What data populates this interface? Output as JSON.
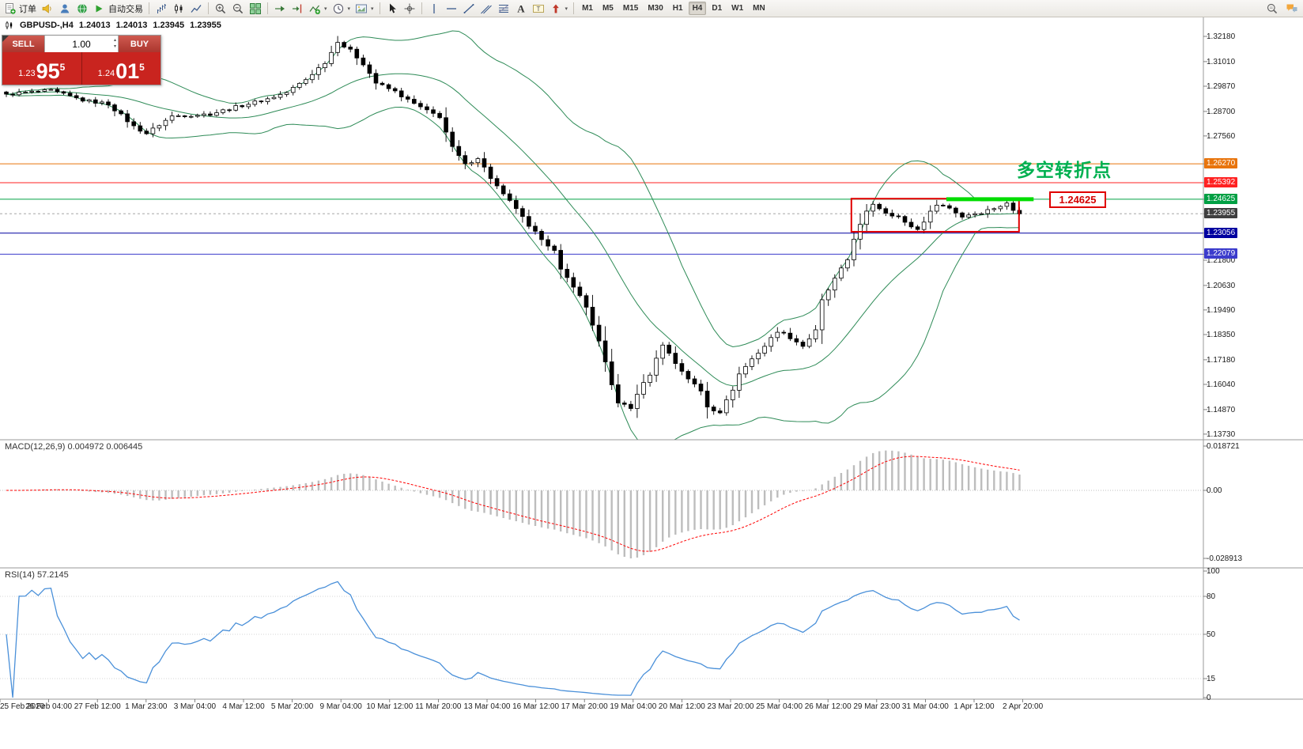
{
  "toolbar": {
    "active_timeframe": "H4",
    "items": [
      {
        "type": "labeled",
        "name": "new-order-button",
        "icon": "order-icon",
        "label": "订单"
      },
      {
        "type": "icon",
        "name": "alerts-horn-button",
        "icon": "horn-icon"
      },
      {
        "type": "icon",
        "name": "profile-button",
        "icon": "profile-icon"
      },
      {
        "type": "icon",
        "name": "community-button",
        "icon": "community-icon"
      },
      {
        "type": "labeled",
        "name": "autotrading-button",
        "icon": "autotrading-icon",
        "label": "自动交易"
      },
      {
        "type": "sep"
      },
      {
        "type": "icon",
        "name": "bar-chart-button",
        "icon": "bar-chart-icon"
      },
      {
        "type": "icon",
        "name": "candlestick-chart-button",
        "icon": "candlestick-chart-icon"
      },
      {
        "type": "icon",
        "name": "line-chart-button",
        "icon": "line-chart-icon"
      },
      {
        "type": "sep"
      },
      {
        "type": "icon",
        "name": "zoom-in-button",
        "icon": "zoom-in-icon"
      },
      {
        "type": "icon",
        "name": "zoom-out-button",
        "icon": "zoom-out-icon"
      },
      {
        "type": "icon",
        "name": "tile-windows-button",
        "icon": "tile-windows-icon"
      },
      {
        "type": "sep"
      },
      {
        "type": "icon",
        "name": "auto-scroll-button",
        "icon": "auto-scroll-icon"
      },
      {
        "type": "icon",
        "name": "chart-shift-button",
        "icon": "chart-shift-icon"
      },
      {
        "type": "icon",
        "name": "indicators-button",
        "icon": "indicators-icon",
        "caret": true
      },
      {
        "type": "icon",
        "name": "periods-button",
        "icon": "clock-icon",
        "caret": true
      },
      {
        "type": "icon",
        "name": "templates-button",
        "icon": "template-icon",
        "caret": true
      },
      {
        "type": "sep"
      },
      {
        "type": "icon",
        "name": "cursor-button",
        "icon": "cursor-icon"
      },
      {
        "type": "icon",
        "name": "crosshair-button",
        "icon": "crosshair-icon"
      },
      {
        "type": "sep"
      },
      {
        "type": "icon",
        "name": "vertical-line-button",
        "icon": "vline-icon"
      },
      {
        "type": "icon",
        "name": "horizontal-line-button",
        "icon": "hline-icon"
      },
      {
        "type": "icon",
        "name": "trendline-button",
        "icon": "trendline-icon"
      },
      {
        "type": "icon",
        "name": "channel-button",
        "icon": "channel-icon"
      },
      {
        "type": "icon",
        "name": "fibonacci-button",
        "icon": "fibo-icon"
      },
      {
        "type": "icon",
        "name": "text-button",
        "icon": "text-icon"
      },
      {
        "type": "icon",
        "name": "text-label-button",
        "icon": "label-icon"
      },
      {
        "type": "icon",
        "name": "arrows-button",
        "icon": "arrows-icon",
        "caret": true
      },
      {
        "type": "sep"
      },
      {
        "type": "tf",
        "label": "M1"
      },
      {
        "type": "tf",
        "label": "M5"
      },
      {
        "type": "tf",
        "label": "M15"
      },
      {
        "type": "tf",
        "label": "M30"
      },
      {
        "type": "tf",
        "label": "H1"
      },
      {
        "type": "tf",
        "label": "H4"
      },
      {
        "type": "tf",
        "label": "D1"
      },
      {
        "type": "tf",
        "label": "W1"
      },
      {
        "type": "tf",
        "label": "MN"
      }
    ],
    "right_icons": [
      "symbol-search-icon",
      "chat-icon"
    ]
  },
  "chart_header": {
    "symbol_period": "GBPUSD-,H4",
    "open": "1.24013",
    "high": "1.24013",
    "low": "1.23945",
    "close": "1.23955"
  },
  "trade_panel": {
    "sell_label": "SELL",
    "buy_label": "BUY",
    "volume": "1.00",
    "sell_price": {
      "prefix": "1.23",
      "big": "95",
      "sup": "5"
    },
    "buy_price": {
      "prefix": "1.24",
      "big": "01",
      "sup": "5"
    }
  },
  "annotations": {
    "turning_point_text": "多空转折点",
    "level_label": "1.24625"
  },
  "price_axis": {
    "plain_ticks": [
      "1.32180",
      "1.31010",
      "1.29870",
      "1.28700",
      "1.27560",
      "1.21800",
      "1.20630",
      "1.19490",
      "1.18350",
      "1.17180",
      "1.16040",
      "1.14870",
      "1.13730"
    ],
    "badges": [
      {
        "price": "1.26270",
        "color": "#e8740c"
      },
      {
        "price": "1.25392",
        "color": "#ff2222"
      },
      {
        "price": "1.24625",
        "color": "#00a043"
      },
      {
        "price": "1.23955",
        "color": "#3f3f3f"
      },
      {
        "price": "1.23056",
        "color": "#0000a0"
      },
      {
        "price": "1.22079",
        "color": "#3c3ccc"
      }
    ]
  },
  "hlines": [
    {
      "price": 1.2627,
      "color": "#e8740c",
      "width": 1
    },
    {
      "price": 1.25392,
      "color": "#ff2222",
      "width": 1
    },
    {
      "price": 1.24625,
      "color": "#00a043",
      "width": 1
    },
    {
      "price": 1.23955,
      "color": "#999999",
      "width": 0.8,
      "dash": "3,3"
    },
    {
      "price": 1.23056,
      "color": "#0000a0",
      "width": 1
    },
    {
      "price": 1.22079,
      "color": "#3c3ccc",
      "width": 1
    }
  ],
  "macd": {
    "label": "MACD(12,26,9) 0.004972 0.006445",
    "axis": [
      "0.018721",
      "0.00",
      "-0.028913"
    ]
  },
  "rsi": {
    "label": "RSI(14) 57.2145",
    "axis": [
      "100",
      "80",
      "50",
      "15",
      "0"
    ],
    "levels": [
      80,
      50,
      15
    ]
  },
  "time_axis": [
    "25 Feb 2020",
    "26 Feb 04:00",
    "27 Feb 12:00",
    "1 Mar 23:00",
    "3 Mar 04:00",
    "4 Mar 12:00",
    "5 Mar 20:00",
    "9 Mar 04:00",
    "10 Mar 12:00",
    "11 Mar 20:00",
    "13 Mar 04:00",
    "16 Mar 12:00",
    "17 Mar 20:00",
    "19 Mar 04:00",
    "20 Mar 12:00",
    "23 Mar 20:00",
    "25 Mar 04:00",
    "26 Mar 12:00",
    "29 Mar 23:00",
    "31 Mar 04:00",
    "1 Apr 12:00",
    "2 Apr 20:00"
  ],
  "chart_data": {
    "type": "candlestick",
    "symbol": "GBPUSD",
    "period": "H4",
    "bar_count": 160,
    "visible_price_range": [
      1.1373,
      1.3218
    ],
    "waypoints": [
      [
        0,
        1.295
      ],
      [
        4,
        1.296
      ],
      [
        7,
        1.2966
      ],
      [
        12,
        1.2922
      ],
      [
        16,
        1.2905
      ],
      [
        20,
        1.28
      ],
      [
        22,
        1.2768
      ],
      [
        26,
        1.2848
      ],
      [
        32,
        1.2858
      ],
      [
        37,
        1.2898
      ],
      [
        41,
        1.2928
      ],
      [
        44,
        1.2958
      ],
      [
        47,
        1.3018
      ],
      [
        50,
        1.3098
      ],
      [
        52,
        1.319
      ],
      [
        54,
        1.3152
      ],
      [
        56,
        1.3092
      ],
      [
        58,
        1.3002
      ],
      [
        61,
        1.2962
      ],
      [
        63,
        1.2922
      ],
      [
        66,
        1.2872
      ],
      [
        68,
        1.2846
      ],
      [
        70,
        1.2702
      ],
      [
        72,
        1.2622
      ],
      [
        74,
        1.2656
      ],
      [
        76,
        1.2562
      ],
      [
        78,
        1.2482
      ],
      [
        80,
        1.2422
      ],
      [
        82,
        1.2332
      ],
      [
        84,
        1.2282
      ],
      [
        86,
        1.2222
      ],
      [
        87,
        1.2132
      ],
      [
        89,
        1.2062
      ],
      [
        91,
        1.1962
      ],
      [
        93,
        1.1802
      ],
      [
        95,
        1.1602
      ],
      [
        96,
        1.1522
      ],
      [
        98,
        1.1492
      ],
      [
        99,
        1.1562
      ],
      [
        101,
        1.1652
      ],
      [
        103,
        1.1792
      ],
      [
        105,
        1.1702
      ],
      [
        107,
        1.1632
      ],
      [
        109,
        1.1572
      ],
      [
        110,
        1.1502
      ],
      [
        112,
        1.1472
      ],
      [
        114,
        1.1582
      ],
      [
        115,
        1.1652
      ],
      [
        117,
        1.1722
      ],
      [
        119,
        1.1782
      ],
      [
        121,
        1.1852
      ],
      [
        123,
        1.1822
      ],
      [
        125,
        1.1782
      ],
      [
        127,
        1.1852
      ],
      [
        128,
        1.1992
      ],
      [
        130,
        1.2092
      ],
      [
        132,
        1.2182
      ],
      [
        133,
        1.2282
      ],
      [
        135,
        1.2402
      ],
      [
        136,
        1.2442
      ],
      [
        138,
        1.2402
      ],
      [
        140,
        1.2382
      ],
      [
        141,
        1.2352
      ],
      [
        143,
        1.2322
      ],
      [
        145,
        1.2402
      ],
      [
        146,
        1.2442
      ],
      [
        148,
        1.2422
      ],
      [
        150,
        1.2382
      ],
      [
        151,
        1.2392
      ],
      [
        153,
        1.2402
      ],
      [
        155,
        1.2422
      ],
      [
        157,
        1.2442
      ],
      [
        158,
        1.2412
      ],
      [
        159,
        1.23955
      ]
    ],
    "indicators": [
      {
        "name": "Bollinger Bands",
        "period": 20,
        "deviation": 2
      },
      {
        "name": "MACD",
        "fast": 12,
        "slow": 26,
        "signal": 9,
        "values": [
          0.004972,
          0.006445
        ]
      },
      {
        "name": "RSI",
        "period": 14,
        "value": 57.2145
      }
    ],
    "red_box": {
      "x1_bar": 132.6,
      "x2_bar": 158.9,
      "top": 1.24653,
      "bottom": 1.23118
    },
    "green_segment": {
      "price": 1.24625,
      "x1_bar": 147.5,
      "x2_bar": 161.2
    }
  }
}
